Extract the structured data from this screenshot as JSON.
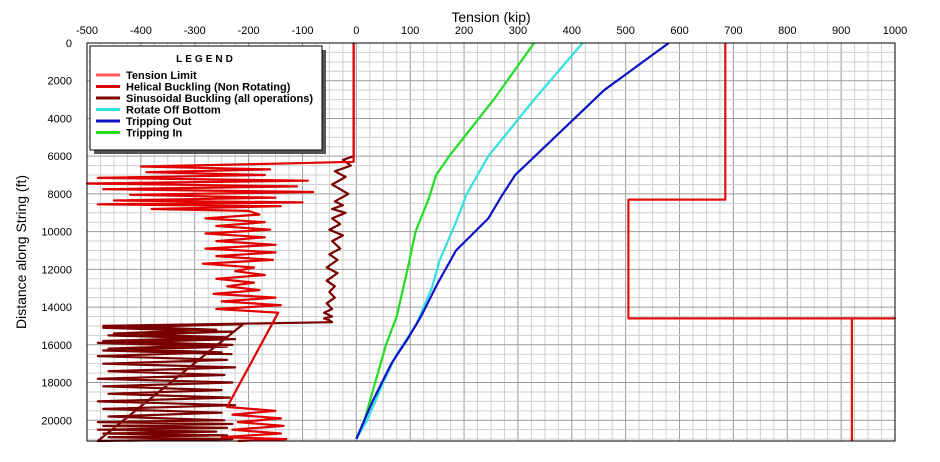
{
  "chart_data": {
    "type": "line",
    "title": "",
    "xlabel": "Tension (kip)",
    "ylabel": "Distance along String (ft)",
    "xlim": [
      -500,
      1000
    ],
    "ylim": [
      0,
      21100
    ],
    "y_inverted": true,
    "x_axis_position": "top",
    "grid": true,
    "x_ticks": [
      "-500",
      "-400",
      "-300",
      "-200",
      "-100",
      "0",
      "100",
      "200",
      "300",
      "400",
      "500",
      "600",
      "700",
      "800",
      "900",
      "1000"
    ],
    "y_ticks": [
      "0",
      "2000",
      "4000",
      "6000",
      "8000",
      "10000",
      "12000",
      "14000",
      "16000",
      "18000",
      "20000"
    ],
    "legend": {
      "title": "LEGEND",
      "placement": "top-left",
      "entries": [
        {
          "label": "Tension Limit",
          "color": "#ff5a5a"
        },
        {
          "label": "Helical Buckling (Non Rotating)",
          "color": "#e00000"
        },
        {
          "label": "Sinusoidal Buckling (all operations)",
          "color": "#7a0000"
        },
        {
          "label": "Rotate Off Bottom",
          "color": "#33e0e0"
        },
        {
          "label": "Tripping Out",
          "color": "#1010c8"
        },
        {
          "label": "Tripping In",
          "color": "#22dd22"
        }
      ]
    },
    "series": [
      {
        "name": "Tripping In",
        "color": "#22dd22",
        "x": [
          330,
          255,
          175,
          148,
          135,
          110,
          95,
          75,
          55,
          35,
          15,
          0
        ],
        "y": [
          0,
          3000,
          5900,
          7000,
          8200,
          10000,
          12000,
          14500,
          16000,
          18000,
          20000,
          21000
        ]
      },
      {
        "name": "Rotate Off Bottom",
        "color": "#33e0e0",
        "x": [
          420,
          330,
          245,
          205,
          185,
          155,
          140,
          110,
          75,
          50,
          20,
          0
        ],
        "y": [
          0,
          3000,
          6000,
          8000,
          9500,
          11500,
          13000,
          15000,
          16500,
          18000,
          20000,
          21000
        ]
      },
      {
        "name": "Tripping Out",
        "color": "#1010c8",
        "x": [
          580,
          460,
          350,
          295,
          270,
          245,
          185,
          150,
          120,
          95,
          65,
          30,
          0
        ],
        "y": [
          0,
          2500,
          5500,
          7000,
          8100,
          9300,
          11000,
          12800,
          14500,
          15700,
          17000,
          19000,
          21000
        ]
      },
      {
        "name": "Tension Limit",
        "color": "#e01010",
        "x": [
          685,
          685,
          505,
          505,
          1000,
          920,
          920
        ],
        "y": [
          0,
          8300,
          8300,
          14600,
          14600,
          14600,
          21100
        ]
      },
      {
        "name": "Sinusoidal Buckling (all operations)",
        "color": "#7a0000",
        "x": [
          -5,
          -5,
          -5,
          -5,
          -5,
          -5,
          -5,
          -25,
          -10,
          -40,
          -20,
          -45,
          -15,
          -40,
          -25,
          -45,
          -20,
          -45,
          -30,
          -50,
          -25,
          -45,
          -30,
          -50,
          -35,
          -55,
          -35,
          -55,
          -40,
          -50,
          -40,
          -55,
          -45,
          -60,
          -45,
          -60,
          -50,
          -45,
          -470,
          -260,
          -450,
          -240,
          -470,
          -230,
          -460,
          -250,
          -480,
          -240,
          -470,
          -225,
          -460,
          -245,
          -480,
          -230,
          -470,
          -250,
          -460,
          -235,
          -480,
          -225,
          -470,
          -250,
          -460,
          -245,
          -480,
          -230,
          -470,
          -240,
          -480,
          -260,
          -470,
          -240,
          -460,
          -230,
          -480,
          -210,
          -470,
          -230,
          -460,
          -225,
          -480,
          -240,
          -470,
          -230
        ],
        "y": [
          0,
          1000,
          2000,
          3000,
          4000,
          5000,
          6000,
          6200,
          6500,
          6800,
          7100,
          7500,
          8000,
          8400,
          8600,
          8800,
          9000,
          9300,
          9600,
          9900,
          10200,
          10500,
          10900,
          11200,
          11500,
          11900,
          12200,
          12600,
          12900,
          13200,
          13500,
          13800,
          14100,
          14300,
          14500,
          14600,
          14700,
          14800,
          15000,
          15200,
          15400,
          15600,
          15800,
          16000,
          16200,
          16400,
          16600,
          16800,
          17000,
          17200,
          17400,
          17600,
          17800,
          18000,
          18200,
          18400,
          18600,
          18800,
          19000,
          19200,
          19400,
          19600,
          19800,
          20000,
          20100,
          20200,
          20300,
          20400,
          20500,
          20600,
          20700,
          20800,
          20900,
          21000,
          21100,
          14900,
          15100,
          15300,
          15500,
          15700,
          15900,
          16100,
          16300,
          16500
        ]
      },
      {
        "name": "Helical Buckling (Non Rotating)",
        "color": "#e00000",
        "x": [
          -5,
          -5,
          -5,
          -5,
          -5,
          -5,
          -5,
          -5,
          -5,
          -5,
          -5,
          -5,
          -5,
          -5,
          -5,
          -5,
          -5,
          -5,
          -5,
          -5,
          -5,
          -5,
          -5,
          -5,
          -5,
          -5,
          -5,
          -5,
          -5,
          -5,
          -150,
          -400,
          -160,
          -390,
          -170,
          -480,
          -90,
          -500,
          -110,
          -470,
          -80,
          -420,
          -150,
          -450,
          -100,
          -480,
          -140,
          -380,
          -200,
          -180,
          -280,
          -170,
          -260,
          -160,
          -280,
          -170,
          -260,
          -150,
          -280,
          -150,
          -260,
          -155,
          -285,
          -190,
          -225,
          -170,
          -260,
          -190,
          -240,
          -180,
          -265,
          -150,
          -250,
          -140,
          -260,
          -145,
          -240,
          -150,
          -230,
          -140,
          -220,
          -135,
          -230,
          -140,
          -250,
          -130,
          -220
        ],
        "y": [
          100,
          300,
          600,
          1000,
          1400,
          1800,
          2200,
          2600,
          3000,
          3400,
          3800,
          4200,
          4600,
          5000,
          5200,
          5400,
          5500,
          5600,
          5700,
          5800,
          5850,
          5900,
          5950,
          6000,
          6050,
          6100,
          6150,
          6200,
          6250,
          6300,
          6400,
          6550,
          6700,
          6850,
          7000,
          7150,
          7300,
          7450,
          7600,
          7750,
          7900,
          8050,
          8200,
          8350,
          8450,
          8550,
          8650,
          8800,
          8900,
          9100,
          9300,
          9500,
          9700,
          9900,
          10100,
          10300,
          10500,
          10700,
          10900,
          11100,
          11300,
          11500,
          11700,
          11900,
          12100,
          12300,
          12500,
          12700,
          12900,
          13100,
          13300,
          13500,
          13700,
          13900,
          14100,
          14300,
          19300,
          19500,
          19700,
          19900,
          20100,
          20300,
          20500,
          20700,
          20900,
          21000,
          21100
        ]
      }
    ]
  }
}
